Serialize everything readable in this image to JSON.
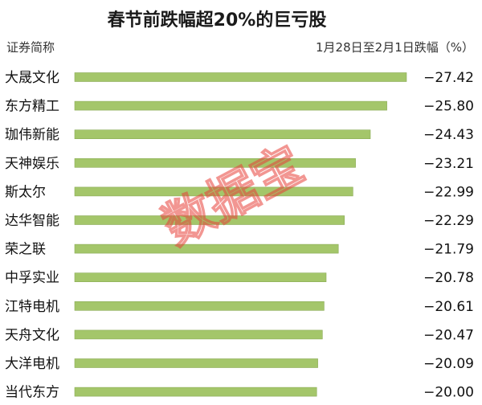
{
  "chart_data": {
    "type": "bar",
    "orientation": "horizontal",
    "title": "春节前跌幅超20%的巨亏股",
    "category_header": "证券简称",
    "value_header": "1月28日至2月1日跌幅（%）",
    "categories": [
      "大晟文化",
      "东方精工",
      "珈伟新能",
      "天神娱乐",
      "斯太尔",
      "达华智能",
      "荣之联",
      "中孚实业",
      "江特电机",
      "天舟文化",
      "大洋电机",
      "当代东方"
    ],
    "values": [
      -27.42,
      -25.8,
      -24.43,
      -23.21,
      -22.99,
      -22.29,
      -21.79,
      -20.78,
      -20.61,
      -20.47,
      -20.09,
      -20.0
    ],
    "value_labels": [
      "−27.42",
      "−25.80",
      "−24.43",
      "−23.21",
      "−22.99",
      "−22.29",
      "−21.79",
      "−20.78",
      "−20.61",
      "−20.47",
      "−20.09",
      "−20.00"
    ],
    "grid": false,
    "legend": "none",
    "colors": {
      "bar": "#a4c66a",
      "bar_shadow": "#8aab55",
      "watermark": "#e8413a"
    }
  },
  "watermark": "数据宝"
}
